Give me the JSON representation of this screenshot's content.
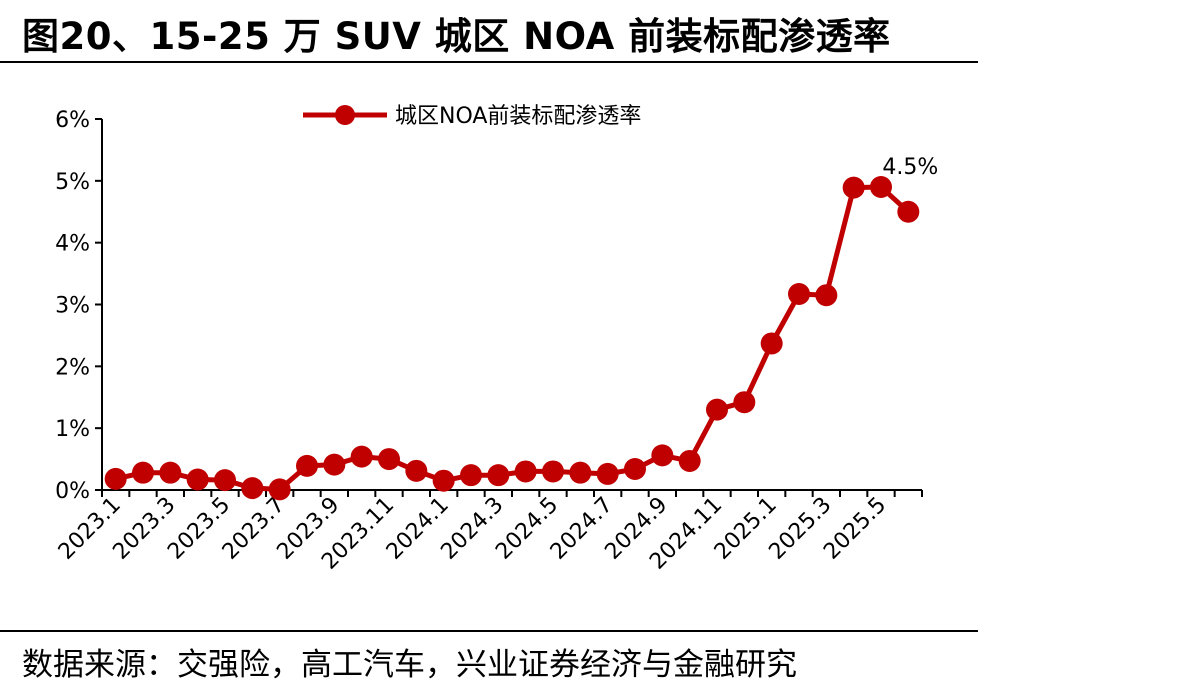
{
  "header": {
    "title": "图20、15-25 万 SUV 城区 NOA 前装标配渗透率"
  },
  "footer": {
    "source": "数据来源：交强险，高工汽车，兴业证券经济与金融研究"
  },
  "colors": {
    "series": "#C00000",
    "axis": "#000000"
  },
  "chart_data": {
    "type": "line",
    "title": "",
    "xlabel": "",
    "ylabel": "",
    "ylim": [
      0,
      6
    ],
    "yticks": [
      "0%",
      "1%",
      "2%",
      "3%",
      "4%",
      "5%",
      "6%"
    ],
    "x": [
      "2023.1",
      "2023.2",
      "2023.3",
      "2023.4",
      "2023.5",
      "2023.6",
      "2023.7",
      "2023.8",
      "2023.9",
      "2023.10",
      "2023.11",
      "2023.12",
      "2024.1",
      "2024.2",
      "2024.3",
      "2024.4",
      "2024.5",
      "2024.6",
      "2024.7",
      "2024.8",
      "2024.9",
      "2024.10",
      "2024.11",
      "2024.12",
      "2025.1",
      "2025.2",
      "2025.3",
      "2025.4",
      "2025.5",
      "2025.6"
    ],
    "xtick_labels": [
      "2023.1",
      "2023.3",
      "2023.5",
      "2023.7",
      "2023.9",
      "2023.11",
      "2024.1",
      "2024.3",
      "2024.5",
      "2024.7",
      "2024.9",
      "2024.11",
      "2025.1",
      "2025.3",
      "2025.5"
    ],
    "series": [
      {
        "name": "城区NOA前装标配渗透率",
        "values": [
          0.18,
          0.28,
          0.28,
          0.17,
          0.16,
          0.03,
          0.01,
          0.39,
          0.41,
          0.54,
          0.5,
          0.31,
          0.15,
          0.24,
          0.24,
          0.3,
          0.3,
          0.28,
          0.26,
          0.34,
          0.56,
          0.47,
          1.3,
          1.42,
          2.37,
          3.17,
          3.15,
          4.89,
          4.9,
          4.5
        ]
      }
    ],
    "annotations": [
      {
        "index": 29,
        "text": "4.5%"
      }
    ],
    "grid": false,
    "legend_position": "top"
  }
}
